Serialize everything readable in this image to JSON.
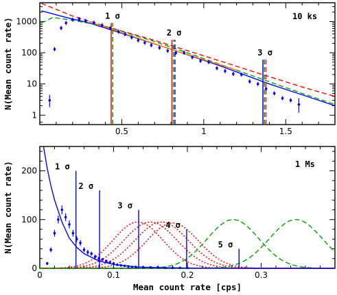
{
  "chart_data": [
    {
      "type": "scatter",
      "panel_label": "10 ks",
      "ylabel": "N(Mean count rate)",
      "xlim": [
        0,
        1.8
      ],
      "ylim": [
        0.5,
        4000
      ],
      "yscale": "log",
      "x_ticks": [
        "0.5",
        "1",
        "1.5"
      ],
      "y_ticks": [
        "1",
        "10",
        "100",
        "1000"
      ],
      "points": [
        {
          "x": 0.06,
          "y": 3.0,
          "lo": 1.8,
          "hi": 4.5
        },
        {
          "x": 0.09,
          "y": 130
        },
        {
          "x": 0.13,
          "y": 620
        },
        {
          "x": 0.16,
          "y": 900
        },
        {
          "x": 0.2,
          "y": 1150
        },
        {
          "x": 0.24,
          "y": 1200
        },
        {
          "x": 0.28,
          "y": 1050
        },
        {
          "x": 0.33,
          "y": 920
        },
        {
          "x": 0.38,
          "y": 760
        },
        {
          "x": 0.43,
          "y": 610
        },
        {
          "x": 0.48,
          "y": 470
        },
        {
          "x": 0.52,
          "y": 390
        },
        {
          "x": 0.56,
          "y": 310
        },
        {
          "x": 0.6,
          "y": 250
        },
        {
          "x": 0.64,
          "y": 210
        },
        {
          "x": 0.68,
          "y": 175
        },
        {
          "x": 0.73,
          "y": 145
        },
        {
          "x": 0.78,
          "y": 115
        },
        {
          "x": 0.83,
          "y": 100
        },
        {
          "x": 0.88,
          "y": 100
        },
        {
          "x": 0.93,
          "y": 72
        },
        {
          "x": 0.98,
          "y": 55
        },
        {
          "x": 1.03,
          "y": 50
        },
        {
          "x": 1.08,
          "y": 32
        },
        {
          "x": 1.13,
          "y": 26
        },
        {
          "x": 1.18,
          "y": 21
        },
        {
          "x": 1.23,
          "y": 20
        },
        {
          "x": 1.28,
          "y": 12
        },
        {
          "x": 1.33,
          "y": 10
        },
        {
          "x": 1.38,
          "y": 7
        },
        {
          "x": 1.43,
          "y": 5
        },
        {
          "x": 1.48,
          "y": 3.5
        },
        {
          "x": 1.53,
          "y": 3.0
        },
        {
          "x": 1.58,
          "y": 2.2,
          "lo": 1.2,
          "hi": 3.5
        }
      ],
      "curves": [
        {
          "color": "#0000ff",
          "dash": "solid",
          "x": [
            0.01,
            0.15,
            0.3,
            0.5,
            0.8,
            1.1,
            1.4,
            1.6,
            1.8
          ],
          "y": [
            2200,
            1400,
            900,
            420,
            130,
            38,
            10,
            4.5,
            2
          ]
        },
        {
          "color": "#ff0000",
          "dash": "dashed",
          "x": [
            0.01,
            0.2,
            0.4,
            0.7,
            1.0,
            1.3,
            1.6,
            1.8
          ],
          "y": [
            3800,
            1500,
            700,
            250,
            80,
            25,
            8,
            4
          ]
        },
        {
          "color": "#00a000",
          "dash": "dashed",
          "x": [
            0.01,
            0.08,
            0.2,
            0.4,
            0.7,
            1.0,
            1.3,
            1.6,
            1.8
          ],
          "y": [
            900,
            1350,
            1100,
            700,
            230,
            65,
            18,
            5,
            2.2
          ]
        },
        {
          "color": "#ff8800",
          "dash": "solid",
          "x": [
            0.3,
            0.5,
            0.8,
            1.0,
            1.2
          ],
          "y": [
            1000,
            440,
            130,
            60,
            28
          ]
        }
      ],
      "sigma_lines": [
        {
          "label": "1 σ",
          "x": 0.44,
          "top": 900,
          "colors": [
            "#ff0000",
            "#00a000"
          ]
        },
        {
          "label": "2 σ",
          "x": 0.815,
          "top": 260,
          "colors": [
            "#ff0000",
            "#00a000",
            "#0000ff"
          ]
        },
        {
          "label": "3 σ",
          "x": 1.37,
          "top": 60,
          "colors": [
            "#0000ff",
            "#00a000",
            "#ff0000"
          ]
        }
      ]
    },
    {
      "type": "scatter",
      "panel_label": "1 Ms",
      "xlabel": "Mean count rate [cps]",
      "ylabel": "N(Mean count rate)",
      "xlim": [
        0,
        0.4
      ],
      "ylim": [
        0,
        250
      ],
      "x_ticks": [
        "0",
        "0.1",
        "0.2",
        "0.3"
      ],
      "y_ticks": [
        "0",
        "100",
        "200"
      ],
      "points": [
        {
          "x": 0.01,
          "y": 10,
          "err": 3
        },
        {
          "x": 0.015,
          "y": 38,
          "err": 5
        },
        {
          "x": 0.02,
          "y": 72,
          "err": 7
        },
        {
          "x": 0.025,
          "y": 100,
          "err": 8
        },
        {
          "x": 0.03,
          "y": 120,
          "err": 9
        },
        {
          "x": 0.035,
          "y": 105,
          "err": 8
        },
        {
          "x": 0.04,
          "y": 90,
          "err": 8
        },
        {
          "x": 0.045,
          "y": 72,
          "err": 7
        },
        {
          "x": 0.05,
          "y": 60,
          "err": 6
        },
        {
          "x": 0.055,
          "y": 52,
          "err": 6
        },
        {
          "x": 0.06,
          "y": 38,
          "err": 5
        },
        {
          "x": 0.065,
          "y": 33,
          "err": 5
        },
        {
          "x": 0.07,
          "y": 30,
          "err": 4
        },
        {
          "x": 0.075,
          "y": 24,
          "err": 4
        },
        {
          "x": 0.08,
          "y": 20,
          "err": 4
        },
        {
          "x": 0.085,
          "y": 18,
          "err": 3
        },
        {
          "x": 0.09,
          "y": 15,
          "err": 3
        },
        {
          "x": 0.095,
          "y": 12,
          "err": 3
        },
        {
          "x": 0.1,
          "y": 10,
          "err": 3
        },
        {
          "x": 0.105,
          "y": 7,
          "err": 2
        },
        {
          "x": 0.11,
          "y": 6,
          "err": 2
        },
        {
          "x": 0.115,
          "y": 5,
          "err": 2
        },
        {
          "x": 0.12,
          "y": 4,
          "err": 2
        },
        {
          "x": 0.125,
          "y": 3,
          "err": 2
        },
        {
          "x": 0.13,
          "y": 3,
          "err": 2
        },
        {
          "x": 0.14,
          "y": 2,
          "err": 1
        },
        {
          "x": 0.15,
          "y": 2,
          "err": 1
        },
        {
          "x": 0.16,
          "y": 2,
          "err": 1
        },
        {
          "x": 0.17,
          "y": 1,
          "err": 1
        },
        {
          "x": 0.18,
          "y": 1,
          "err": 1
        },
        {
          "x": 0.19,
          "y": 1,
          "err": 1
        },
        {
          "x": 0.2,
          "y": 1,
          "err": 1
        }
      ],
      "fit_curve": {
        "color": "#0000ff",
        "dash": "solid",
        "x": [
          0.005,
          0.01,
          0.015,
          0.02,
          0.03,
          0.04,
          0.05,
          0.06,
          0.08,
          0.1,
          0.13,
          0.16,
          0.2,
          0.25,
          0.3,
          0.4
        ],
        "y": [
          250,
          205,
          170,
          140,
          95,
          62,
          43,
          30,
          15,
          8,
          3,
          1.5,
          0.6,
          0.2,
          0.05,
          0
        ]
      },
      "red_gaussians": [
        {
          "color": "#ff0000",
          "dash": "dotted",
          "center": 0.133,
          "sigma": 0.034,
          "amp": 95
        },
        {
          "color": "#ff0000",
          "dash": "dotted",
          "center": 0.15,
          "sigma": 0.036,
          "amp": 95
        },
        {
          "color": "#ff0000",
          "dash": "dotted",
          "center": 0.165,
          "sigma": 0.036,
          "amp": 95
        },
        {
          "color": "#ff0000",
          "dash": "dotted",
          "center": 0.18,
          "sigma": 0.035,
          "amp": 93
        }
      ],
      "green_gaussians": [
        {
          "color": "#00a000",
          "dash": "dashed",
          "center": 0.262,
          "sigma": 0.035,
          "amp": 100
        },
        {
          "color": "#00a000",
          "dash": "dashed",
          "center": 0.347,
          "sigma": 0.036,
          "amp": 100
        }
      ],
      "sigma_lines": [
        {
          "label": "1 σ",
          "x": 0.049,
          "top": 200,
          "color": "#0000ff"
        },
        {
          "label": "2 σ",
          "x": 0.081,
          "top": 160,
          "color": "#0000ff"
        },
        {
          "label": "3 σ",
          "x": 0.134,
          "top": 120,
          "color": "#0000ff"
        },
        {
          "label": "4 σ",
          "x": 0.199,
          "top": 80,
          "color": "#0000ff"
        },
        {
          "label": "5 σ",
          "x": 0.27,
          "top": 40,
          "color": "#0000ff"
        }
      ]
    }
  ]
}
